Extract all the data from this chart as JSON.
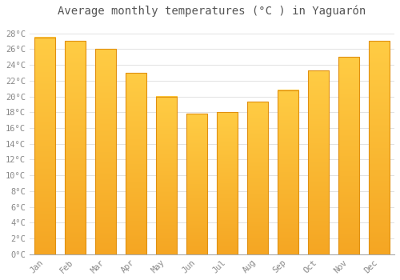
{
  "months": [
    "Jan",
    "Feb",
    "Mar",
    "Apr",
    "May",
    "Jun",
    "Jul",
    "Aug",
    "Sep",
    "Oct",
    "Nov",
    "Dec"
  ],
  "temperatures": [
    27.5,
    27.0,
    26.0,
    23.0,
    20.0,
    17.8,
    18.0,
    19.3,
    20.8,
    23.3,
    25.0,
    27.0
  ],
  "bar_color_top": "#FFCC44",
  "bar_color_bottom": "#F5A623",
  "bar_edge_color": "#E09010",
  "title": "Average monthly temperatures (°C ) in Yaguarón",
  "ylabel_ticks": [
    "0°C",
    "2°C",
    "4°C",
    "6°C",
    "8°C",
    "10°C",
    "12°C",
    "14°C",
    "16°C",
    "18°C",
    "20°C",
    "22°C",
    "24°C",
    "26°C",
    "28°C"
  ],
  "ytick_values": [
    0,
    2,
    4,
    6,
    8,
    10,
    12,
    14,
    16,
    18,
    20,
    22,
    24,
    26,
    28
  ],
  "ylim": [
    0,
    29.5
  ],
  "background_color": "#FFFFFF",
  "grid_color": "#DDDDDD",
  "title_fontsize": 10,
  "tick_fontsize": 7.5,
  "tick_color": "#888888",
  "title_color": "#555555",
  "bar_width": 0.7
}
